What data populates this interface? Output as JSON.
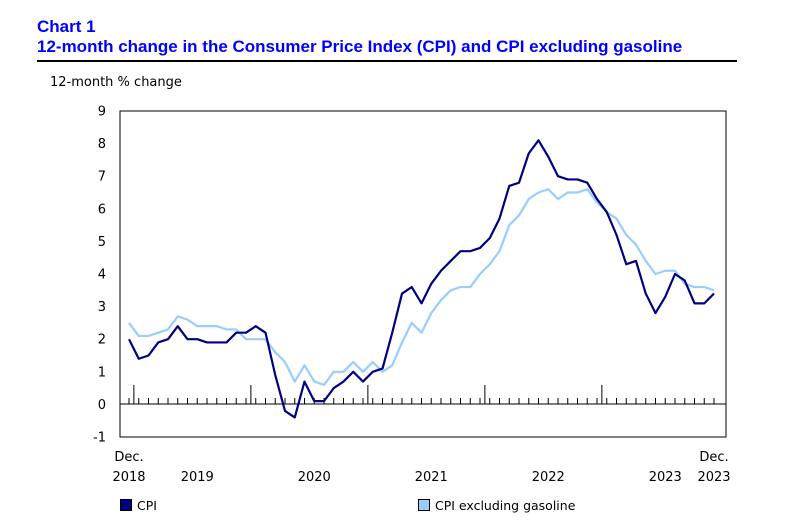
{
  "header": {
    "chart_number": "Chart 1",
    "chart_title": "12-month change in the Consumer Price Index (CPI) and CPI excluding gasoline"
  },
  "chart_data": {
    "type": "line",
    "title": "12-month change in the Consumer Price Index (CPI) and CPI excluding gasoline",
    "ylabel": "12-month % change",
    "xlabel": "",
    "ylim": [
      -1,
      9
    ],
    "yticks": [
      -1,
      0,
      1,
      2,
      3,
      4,
      5,
      6,
      7,
      8,
      9
    ],
    "x_start": "Dec. 2018",
    "x_end": "Dec. 2023",
    "x_tick_labels": [
      {
        "index": 0,
        "line1": "Dec.",
        "line2": "2018"
      },
      {
        "index": 7,
        "line1": "",
        "line2": "2019"
      },
      {
        "index": 19,
        "line1": "",
        "line2": "2020"
      },
      {
        "index": 31,
        "line1": "",
        "line2": "2021"
      },
      {
        "index": 43,
        "line1": "",
        "line2": "2022"
      },
      {
        "index": 55,
        "line1": "",
        "line2": "2023"
      },
      {
        "index": 60,
        "line1": "Dec.",
        "line2": "2023"
      }
    ],
    "year_boundary_indices": [
      0.5,
      12.5,
      24.5,
      36.5,
      48.5
    ],
    "series": [
      {
        "name": "CPI",
        "color": "#000080",
        "values": [
          2.0,
          1.4,
          1.5,
          1.9,
          2.0,
          2.4,
          2.0,
          2.0,
          1.9,
          1.9,
          1.9,
          2.2,
          2.2,
          2.4,
          2.2,
          0.9,
          -0.2,
          -0.4,
          0.7,
          0.1,
          0.1,
          0.5,
          0.7,
          1.0,
          0.7,
          1.0,
          1.1,
          2.2,
          3.4,
          3.6,
          3.1,
          3.7,
          4.1,
          4.4,
          4.7,
          4.7,
          4.8,
          5.1,
          5.7,
          6.7,
          6.8,
          7.7,
          8.1,
          7.6,
          7.0,
          6.9,
          6.9,
          6.8,
          6.3,
          5.9,
          5.2,
          4.3,
          4.4,
          3.4,
          2.8,
          3.3,
          4.0,
          3.8,
          3.1,
          3.1,
          3.4
        ]
      },
      {
        "name": "CPI excluding gasoline",
        "color": "#99ccff",
        "values": [
          2.5,
          2.1,
          2.1,
          2.2,
          2.3,
          2.7,
          2.6,
          2.4,
          2.4,
          2.4,
          2.3,
          2.3,
          2.0,
          2.0,
          2.0,
          1.6,
          1.3,
          0.7,
          1.2,
          0.7,
          0.6,
          1.0,
          1.0,
          1.3,
          1.0,
          1.3,
          1.0,
          1.2,
          1.9,
          2.5,
          2.2,
          2.8,
          3.2,
          3.5,
          3.6,
          3.6,
          4.0,
          4.3,
          4.7,
          5.5,
          5.8,
          6.3,
          6.5,
          6.6,
          6.3,
          6.5,
          6.5,
          6.6,
          6.2,
          5.9,
          5.7,
          5.2,
          4.9,
          4.4,
          4.0,
          4.1,
          4.1,
          3.7,
          3.6,
          3.6,
          3.5
        ]
      }
    ],
    "legend": [
      "CPI",
      "CPI excluding gasoline"
    ],
    "legend_position": "bottom"
  }
}
